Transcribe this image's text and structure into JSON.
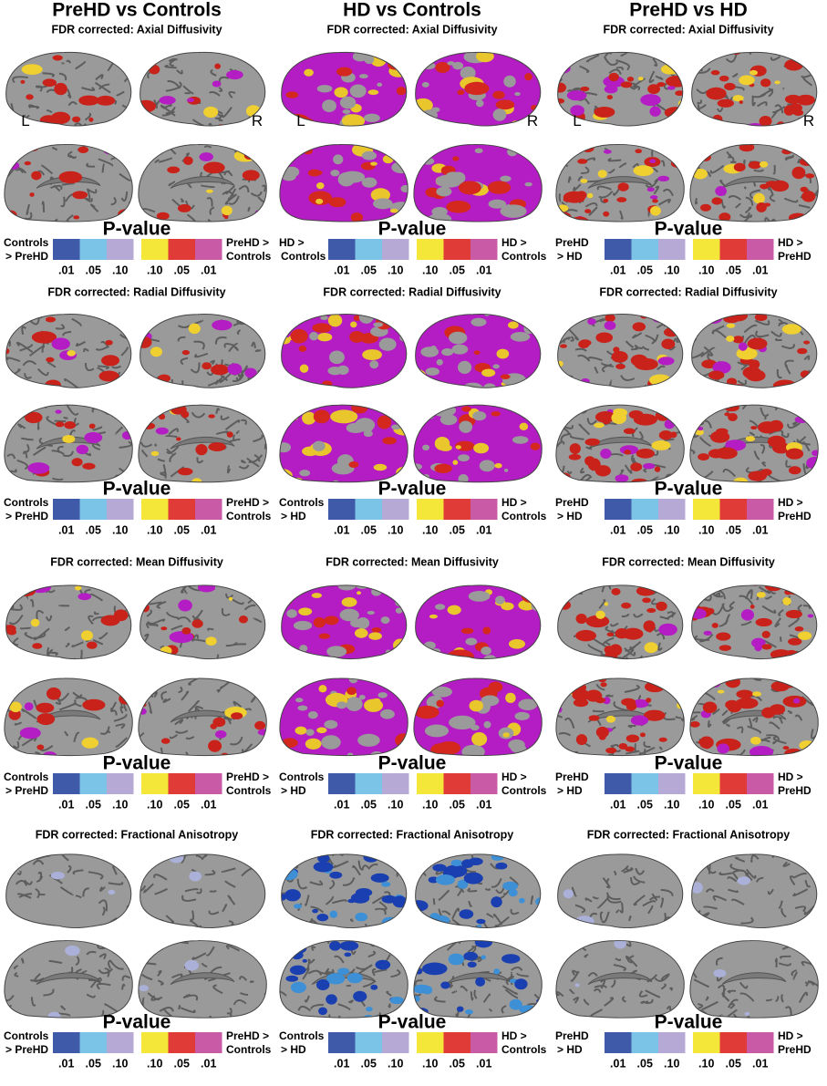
{
  "columns": [
    {
      "title": "PreHD vs Controls",
      "panels": [
        {
          "subtitle": "FDR corrected: Axial Diffusivity",
          "labels": [
            "L",
            "R"
          ],
          "scale_title": "P-value",
          "left_legend": [
            "Controls",
            "> PreHD"
          ],
          "right_legend": [
            "PreHD >",
            "Controls"
          ],
          "ticks": [
            ".01",
            ".05",
            ".10",
            ".10",
            ".05",
            ".01"
          ]
        },
        {
          "subtitle": "FDR corrected: Radial Diffusivity",
          "scale_title": "P-value",
          "left_legend": [
            "Controls",
            "> PreHD"
          ],
          "right_legend": [
            "PreHD >",
            "Controls"
          ],
          "ticks": [
            ".01",
            ".05",
            ".10",
            ".10",
            ".05",
            ".01"
          ]
        },
        {
          "subtitle": "FDR corrected: Mean Diffusivity",
          "scale_title": "P-value",
          "left_legend": [
            "Controls",
            "> PreHD"
          ],
          "right_legend": [
            "PreHD >",
            "Controls"
          ],
          "ticks": [
            ".01",
            ".05",
            ".10",
            ".10",
            ".05",
            ".01"
          ]
        },
        {
          "subtitle": "FDR corrected: Fractional Anisotropy",
          "scale_title": "P-value",
          "left_legend": [
            "Controls",
            "> PreHD"
          ],
          "right_legend": [
            "PreHD >",
            "Controls"
          ],
          "ticks": [
            ".01",
            ".05",
            ".10",
            ".10",
            ".05",
            ".01"
          ]
        }
      ]
    },
    {
      "title": "HD vs Controls",
      "panels": [
        {
          "subtitle": "FDR corrected: Axial Diffusivity",
          "labels": [
            "L",
            "R"
          ],
          "scale_title": "P-value",
          "left_legend": [
            "HD >",
            "Controls"
          ],
          "right_legend": [
            "HD >",
            "Controls"
          ],
          "ticks": [
            ".01",
            ".05",
            ".10",
            ".10",
            ".05",
            ".01"
          ]
        },
        {
          "subtitle": "FDR corrected: Radial Diffusivity",
          "scale_title": "P-value",
          "left_legend": [
            "Controls",
            "> HD"
          ],
          "right_legend": [
            "HD >",
            "Controls"
          ],
          "ticks": [
            ".01",
            ".05",
            ".10",
            ".10",
            ".05",
            ".01"
          ]
        },
        {
          "subtitle": "FDR corrected: Mean Diffusivity",
          "scale_title": "P-value",
          "left_legend": [
            "Controls",
            "> HD"
          ],
          "right_legend": [
            "HD >",
            "Controls"
          ],
          "ticks": [
            ".01",
            ".05",
            ".10",
            ".10",
            ".05",
            ".01"
          ]
        },
        {
          "subtitle": "FDR corrected: Fractional Anisotropy",
          "scale_title": "P-value",
          "left_legend": [
            "Controls",
            "> HD"
          ],
          "right_legend": [
            "HD >",
            "Controls"
          ],
          "ticks": [
            ".01",
            ".05",
            ".10",
            ".10",
            ".05",
            ".01"
          ]
        }
      ]
    },
    {
      "title": "PreHD vs HD",
      "panels": [
        {
          "subtitle": "FDR corrected: Axial Diffusivity",
          "labels": [
            "L",
            "R"
          ],
          "scale_title": "P-value",
          "left_legend": [
            "PreHD",
            "> HD"
          ],
          "right_legend": [
            "HD >",
            "PreHD"
          ],
          "ticks": [
            ".01",
            ".05",
            ".10",
            ".10",
            ".05",
            ".01"
          ]
        },
        {
          "subtitle": "FDR corrected: Radial Diffusivity",
          "scale_title": "P-value",
          "left_legend": [
            "PreHD",
            "> HD"
          ],
          "right_legend": [
            "HD >",
            "PreHD"
          ],
          "ticks": [
            ".01",
            ".05",
            ".10",
            ".10",
            ".05",
            ".01"
          ]
        },
        {
          "subtitle": "FDR corrected: Mean Diffusivity",
          "scale_title": "P-value",
          "left_legend": [
            "PreHD",
            "> HD"
          ],
          "right_legend": [
            "HD >",
            "PreHD"
          ],
          "ticks": [
            ".01",
            ".05",
            ".10",
            ".10",
            ".05",
            ".01"
          ]
        },
        {
          "subtitle": "FDR corrected: Fractional Anisotropy",
          "scale_title": "P-value",
          "left_legend": [
            "PreHD",
            "> HD"
          ],
          "right_legend": [
            "HD >",
            "PreHD"
          ],
          "ticks": [
            ".01",
            ".05",
            ".10",
            ".10",
            ".05",
            ".01"
          ]
        }
      ]
    }
  ]
}
